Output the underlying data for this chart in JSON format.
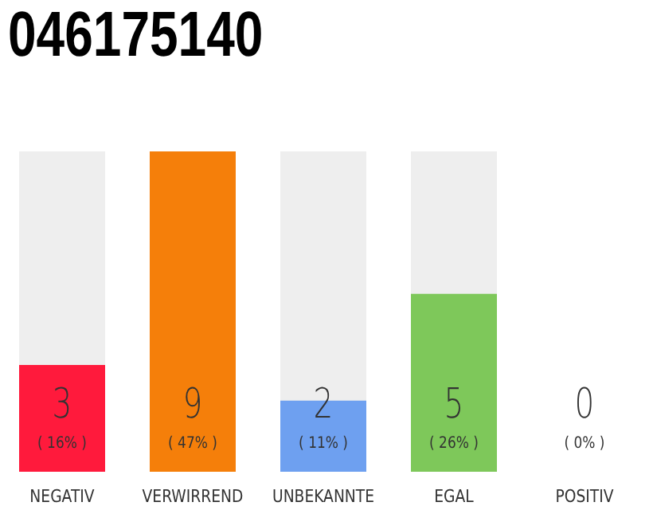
{
  "chart_data": {
    "type": "bar",
    "title": "046175140",
    "categories": [
      "NEGATIV",
      "VERWIRREND",
      "UNBEKANNTE",
      "EGAL",
      "POSITIV"
    ],
    "values": [
      3,
      9,
      2,
      5,
      0
    ],
    "colors": [
      "#ff1a3c",
      "#f57f0a",
      "#6ea0f0",
      "#7ec85a",
      "#cccccc"
    ],
    "data_labels": true,
    "annotations": [
      "( 16% )",
      "( 47% )",
      "( 11% )",
      "( 26% )",
      "( 0% )"
    ],
    "grid": false,
    "legend": false
  }
}
